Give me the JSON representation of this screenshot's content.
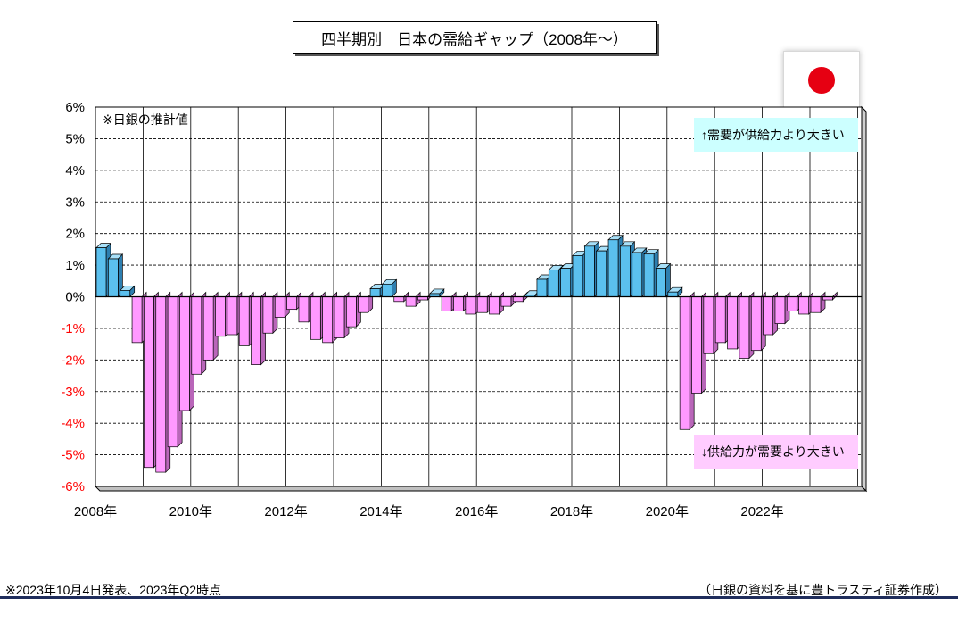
{
  "title": "四半期別　日本の需給ギャップ（2008年～）",
  "flag_icon": "japan-flag-icon",
  "annotation_estimate": "※日銀の推計値",
  "note_up": "↑需要が供給力より大きい",
  "note_down": "↓供給力が需要より大きい",
  "footer_left": "※2023年10月4日発表、2023年Q2時点",
  "footer_right": "（日銀の資料を基に豊トラスティ証券作成）",
  "colors": {
    "positive": "#5bc0ee",
    "negative": "#ff99ff",
    "flag_red": "#e60012"
  },
  "chart_data": {
    "type": "bar",
    "title": "四半期別　日本の需給ギャップ（2008年～）",
    "xlabel": "",
    "ylabel": "",
    "ylim": [
      -6,
      6
    ],
    "y_ticks": [
      "6%",
      "5%",
      "4%",
      "3%",
      "2%",
      "1%",
      "0%",
      "-1%",
      "-2%",
      "-3%",
      "-4%",
      "-5%",
      "-6%"
    ],
    "x_tick_labels": [
      "2008年",
      "2010年",
      "2012年",
      "2014年",
      "2016年",
      "2018年",
      "2020年",
      "2022年"
    ],
    "grid": true,
    "start": "2008Q1",
    "categories": [
      "2008Q1",
      "2008Q2",
      "2008Q3",
      "2008Q4",
      "2009Q1",
      "2009Q2",
      "2009Q3",
      "2009Q4",
      "2010Q1",
      "2010Q2",
      "2010Q3",
      "2010Q4",
      "2011Q1",
      "2011Q2",
      "2011Q3",
      "2011Q4",
      "2012Q1",
      "2012Q2",
      "2012Q3",
      "2012Q4",
      "2013Q1",
      "2013Q2",
      "2013Q3",
      "2013Q4",
      "2014Q1",
      "2014Q2",
      "2014Q3",
      "2014Q4",
      "2015Q1",
      "2015Q2",
      "2015Q3",
      "2015Q4",
      "2016Q1",
      "2016Q2",
      "2016Q3",
      "2016Q4",
      "2017Q1",
      "2017Q2",
      "2017Q3",
      "2017Q4",
      "2018Q1",
      "2018Q2",
      "2018Q3",
      "2018Q4",
      "2019Q1",
      "2019Q2",
      "2019Q3",
      "2019Q4",
      "2020Q1",
      "2020Q2",
      "2020Q3",
      "2020Q4",
      "2021Q1",
      "2021Q2",
      "2021Q3",
      "2021Q4",
      "2022Q1",
      "2022Q2",
      "2022Q3",
      "2022Q4",
      "2023Q1",
      "2023Q2"
    ],
    "values": [
      1.55,
      1.2,
      0.2,
      -1.45,
      -5.4,
      -5.55,
      -4.75,
      -3.6,
      -2.45,
      -2.0,
      -1.25,
      -1.2,
      -1.55,
      -2.15,
      -1.15,
      -0.65,
      -0.4,
      -0.8,
      -1.35,
      -1.45,
      -1.3,
      -0.95,
      -0.5,
      0.25,
      0.4,
      -0.15,
      -0.3,
      -0.1,
      0.1,
      -0.45,
      -0.45,
      -0.55,
      -0.5,
      -0.55,
      -0.3,
      -0.15,
      0.05,
      0.55,
      0.85,
      0.9,
      1.3,
      1.6,
      1.45,
      1.8,
      1.6,
      1.4,
      1.35,
      0.9,
      0.15,
      -4.2,
      -3.05,
      -1.8,
      -1.45,
      -1.65,
      -1.95,
      -1.7,
      -1.2,
      -0.85,
      -0.45,
      -0.55,
      -0.5,
      -0.1
    ]
  }
}
